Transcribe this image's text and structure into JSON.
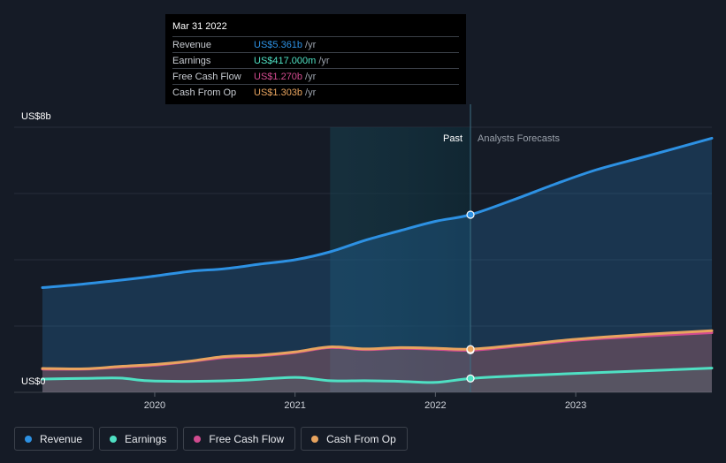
{
  "chart_data": {
    "type": "area",
    "title": "",
    "y_unit_label_top": "US$8b",
    "y_unit_label_bottom": "US$0",
    "ylim": [
      0,
      8
    ],
    "x_range": [
      2019.2,
      2023.97
    ],
    "x_ticks": [
      2020,
      2021,
      2022,
      2023
    ],
    "x_tick_labels": [
      "2020",
      "2021",
      "2022",
      "2023"
    ],
    "divider_x": 2022.25,
    "highlight_start_x": 2021.25,
    "past_label": "Past",
    "forecast_label": "Analysts Forecasts",
    "series": [
      {
        "name": "Revenue",
        "color": "#2d91e3",
        "points": [
          [
            2019.2,
            3.16
          ],
          [
            2019.45,
            3.25
          ],
          [
            2019.7,
            3.36
          ],
          [
            2019.95,
            3.48
          ],
          [
            2020.25,
            3.65
          ],
          [
            2020.5,
            3.73
          ],
          [
            2020.75,
            3.87
          ],
          [
            2021.0,
            4.0
          ],
          [
            2021.25,
            4.24
          ],
          [
            2021.5,
            4.59
          ],
          [
            2021.75,
            4.88
          ],
          [
            2022.0,
            5.16
          ],
          [
            2022.25,
            5.361
          ]
        ],
        "forecast": [
          [
            2022.25,
            5.361
          ],
          [
            2022.55,
            5.8
          ],
          [
            2022.85,
            6.28
          ],
          [
            2023.15,
            6.72
          ],
          [
            2023.5,
            7.12
          ],
          [
            2023.97,
            7.67
          ]
        ]
      },
      {
        "name": "Earnings",
        "color": "#4fe0c3",
        "points": [
          [
            2019.2,
            0.4
          ],
          [
            2019.5,
            0.42
          ],
          [
            2019.75,
            0.43
          ],
          [
            2019.95,
            0.35
          ],
          [
            2020.25,
            0.33
          ],
          [
            2020.6,
            0.36
          ],
          [
            2021.0,
            0.45
          ],
          [
            2021.25,
            0.35
          ],
          [
            2021.5,
            0.35
          ],
          [
            2021.75,
            0.33
          ],
          [
            2022.0,
            0.3
          ],
          [
            2022.25,
            0.417
          ]
        ],
        "forecast": [
          [
            2022.25,
            0.417
          ],
          [
            2022.6,
            0.5
          ],
          [
            2023.0,
            0.57
          ],
          [
            2023.5,
            0.65
          ],
          [
            2023.97,
            0.73
          ]
        ]
      },
      {
        "name": "Free Cash Flow",
        "color": "#d14b8f",
        "points": [
          [
            2019.2,
            0.7
          ],
          [
            2019.5,
            0.7
          ],
          [
            2019.75,
            0.76
          ],
          [
            2020.0,
            0.82
          ],
          [
            2020.25,
            0.93
          ],
          [
            2020.5,
            1.05
          ],
          [
            2020.75,
            1.1
          ],
          [
            2021.0,
            1.2
          ],
          [
            2021.25,
            1.35
          ],
          [
            2021.5,
            1.29
          ],
          [
            2021.75,
            1.33
          ],
          [
            2022.0,
            1.3
          ],
          [
            2022.25,
            1.27
          ]
        ],
        "forecast": [
          [
            2022.25,
            1.27
          ],
          [
            2022.6,
            1.4
          ],
          [
            2023.0,
            1.57
          ],
          [
            2023.5,
            1.7
          ],
          [
            2023.97,
            1.8
          ]
        ]
      },
      {
        "name": "Cash From Op",
        "color": "#e8a45f",
        "points": [
          [
            2019.2,
            0.72
          ],
          [
            2019.5,
            0.71
          ],
          [
            2019.75,
            0.78
          ],
          [
            2020.0,
            0.84
          ],
          [
            2020.25,
            0.94
          ],
          [
            2020.5,
            1.08
          ],
          [
            2020.75,
            1.12
          ],
          [
            2021.0,
            1.22
          ],
          [
            2021.25,
            1.37
          ],
          [
            2021.5,
            1.31
          ],
          [
            2021.75,
            1.35
          ],
          [
            2022.0,
            1.33
          ],
          [
            2022.25,
            1.303
          ]
        ],
        "forecast": [
          [
            2022.25,
            1.303
          ],
          [
            2022.6,
            1.43
          ],
          [
            2023.0,
            1.6
          ],
          [
            2023.5,
            1.75
          ],
          [
            2023.97,
            1.86
          ]
        ]
      }
    ]
  },
  "tooltip": {
    "date": "Mar 31 2022",
    "rows": [
      {
        "name": "Revenue",
        "value": "US$5.361b",
        "unit": "/yr",
        "color": "#2d91e3"
      },
      {
        "name": "Earnings",
        "value": "US$417.000m",
        "unit": "/yr",
        "color": "#4fe0c3"
      },
      {
        "name": "Free Cash Flow",
        "value": "US$1.270b",
        "unit": "/yr",
        "color": "#d14b8f"
      },
      {
        "name": "Cash From Op",
        "value": "US$1.303b",
        "unit": "/yr",
        "color": "#e8a45f"
      }
    ]
  },
  "legend": [
    {
      "label": "Revenue",
      "color": "#2d91e3"
    },
    {
      "label": "Earnings",
      "color": "#4fe0c3"
    },
    {
      "label": "Free Cash Flow",
      "color": "#d14b8f"
    },
    {
      "label": "Cash From Op",
      "color": "#e8a45f"
    }
  ]
}
